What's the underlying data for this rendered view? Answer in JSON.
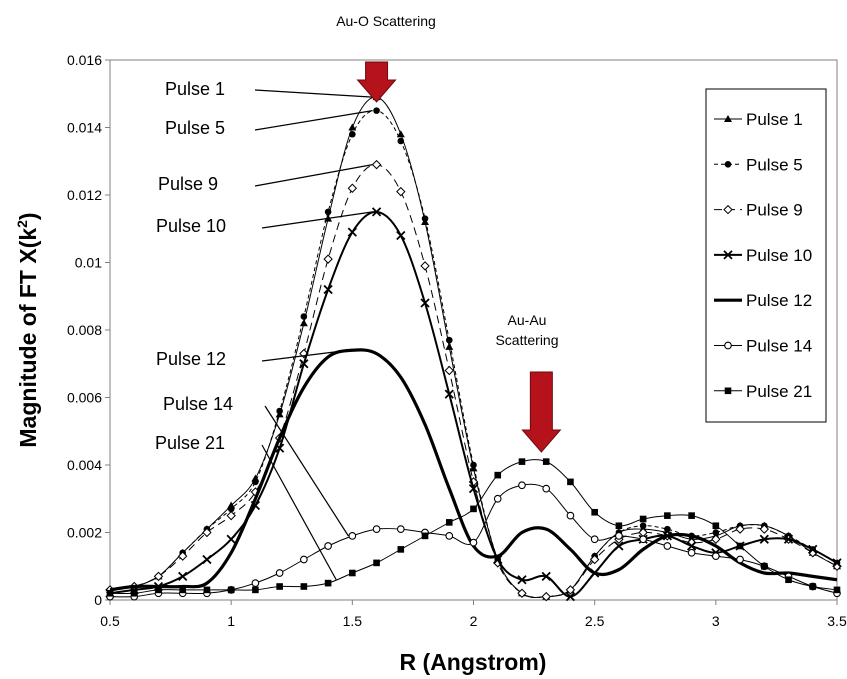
{
  "chart_data": {
    "type": "line",
    "title": "",
    "xlabel": "R (Angstrom)",
    "ylabel": "Magnitude of FT X(k",
    "ylabel_superscript": "2",
    "ylabel_suffix": ")",
    "xlim": [
      0.5,
      3.5
    ],
    "ylim": [
      0,
      0.016
    ],
    "xticks": [
      0.5,
      1,
      1.5,
      2,
      2.5,
      3,
      3.5
    ],
    "xtick_labels": [
      "0.5",
      "1",
      "1.5",
      "2",
      "2.5",
      "3",
      "3.5"
    ],
    "yticks": [
      0,
      0.002,
      0.004,
      0.006,
      0.008,
      0.01,
      0.012,
      0.014,
      0.016
    ],
    "ytick_labels": [
      "0",
      "0.002",
      "0.004",
      "0.006",
      "0.008",
      "0.01",
      "0.012",
      "0.014",
      "0.016"
    ],
    "grid": false,
    "legend_position": "right",
    "annotations": [
      {
        "text_lines": [
          "Au-O Scattering"
        ],
        "x": 1.6,
        "y": 0.0149
      },
      {
        "text_lines": [
          "Au-Au",
          "Scattering"
        ],
        "x": 2.28,
        "y": 0.0042
      }
    ],
    "arrow_color": "#b5121b",
    "series": [
      {
        "name": "Pulse 1",
        "marker": "triangle",
        "dash": "solid",
        "width": 1,
        "x": [
          0.5,
          0.6,
          0.7,
          0.8,
          0.9,
          1.0,
          1.1,
          1.2,
          1.3,
          1.4,
          1.5,
          1.6,
          1.7,
          1.8,
          1.9,
          2.0,
          2.1,
          2.2,
          2.3,
          2.4,
          2.5,
          2.6,
          2.7,
          2.8,
          2.9,
          3.0,
          3.1,
          3.2,
          3.3,
          3.4,
          3.5
        ],
        "y": [
          0.0003,
          0.0004,
          0.0007,
          0.0014,
          0.0021,
          0.0028,
          0.0036,
          0.0055,
          0.0082,
          0.0113,
          0.014,
          0.0149,
          0.0138,
          0.0112,
          0.0075,
          0.0039,
          0.0012,
          0.0002,
          0.0001,
          0.0003,
          0.0013,
          0.002,
          0.0021,
          0.002,
          0.0018,
          0.0019,
          0.0022,
          0.0022,
          0.0019,
          0.0014,
          0.001
        ]
      },
      {
        "name": "Pulse 5",
        "marker": "circle-filled",
        "dash": "dash",
        "width": 1,
        "x": [
          0.5,
          0.6,
          0.7,
          0.8,
          0.9,
          1.0,
          1.1,
          1.2,
          1.3,
          1.4,
          1.5,
          1.6,
          1.7,
          1.8,
          1.9,
          2.0,
          2.1,
          2.2,
          2.3,
          2.4,
          2.5,
          2.6,
          2.7,
          2.8,
          2.9,
          3.0,
          3.1,
          3.2,
          3.3,
          3.4,
          3.5
        ],
        "y": [
          0.0003,
          0.0004,
          0.0007,
          0.0014,
          0.0021,
          0.0027,
          0.0035,
          0.0056,
          0.0084,
          0.0115,
          0.0138,
          0.0145,
          0.0136,
          0.0113,
          0.0077,
          0.004,
          0.0012,
          0.0002,
          0.0001,
          0.0003,
          0.0013,
          0.002,
          0.0022,
          0.0021,
          0.0019,
          0.002,
          0.0022,
          0.0022,
          0.0019,
          0.0015,
          0.0011
        ]
      },
      {
        "name": "Pulse 9",
        "marker": "diamond",
        "dash": "dashlong",
        "width": 1,
        "x": [
          0.5,
          0.6,
          0.7,
          0.8,
          0.9,
          1.0,
          1.1,
          1.2,
          1.3,
          1.4,
          1.5,
          1.6,
          1.7,
          1.8,
          1.9,
          2.0,
          2.1,
          2.2,
          2.3,
          2.4,
          2.5,
          2.6,
          2.7,
          2.8,
          2.9,
          3.0,
          3.1,
          3.2,
          3.3,
          3.4,
          3.5
        ],
        "y": [
          0.0003,
          0.0004,
          0.0007,
          0.0013,
          0.002,
          0.0025,
          0.0032,
          0.0048,
          0.0073,
          0.0101,
          0.0122,
          0.0129,
          0.0121,
          0.0099,
          0.0068,
          0.0035,
          0.0011,
          0.0002,
          0.0001,
          0.0003,
          0.0012,
          0.0018,
          0.002,
          0.0019,
          0.0017,
          0.0018,
          0.0021,
          0.0021,
          0.0018,
          0.0014,
          0.001
        ]
      },
      {
        "name": "Pulse 10",
        "marker": "x",
        "dash": "solid",
        "width": 2,
        "x": [
          0.5,
          0.6,
          0.7,
          0.8,
          0.9,
          1.0,
          1.1,
          1.2,
          1.3,
          1.4,
          1.5,
          1.6,
          1.7,
          1.8,
          1.9,
          2.0,
          2.1,
          2.2,
          2.3,
          2.4,
          2.5,
          2.6,
          2.7,
          2.8,
          2.9,
          3.0,
          3.1,
          3.2,
          3.3,
          3.4,
          3.5
        ],
        "y": [
          0.0002,
          0.0003,
          0.0004,
          0.0007,
          0.0012,
          0.0018,
          0.0028,
          0.0045,
          0.007,
          0.0092,
          0.0109,
          0.0115,
          0.0108,
          0.0088,
          0.0061,
          0.0033,
          0.0012,
          0.0006,
          0.0007,
          0.0001,
          0.0008,
          0.0016,
          0.0018,
          0.0019,
          0.0016,
          0.0014,
          0.0016,
          0.0018,
          0.0018,
          0.0015,
          0.0011
        ]
      },
      {
        "name": "Pulse 12",
        "marker": "none",
        "dash": "solid",
        "width": 3.2,
        "x": [
          0.5,
          0.6,
          0.7,
          0.8,
          0.9,
          1.0,
          1.1,
          1.2,
          1.3,
          1.4,
          1.5,
          1.6,
          1.7,
          1.8,
          1.9,
          2.0,
          2.1,
          2.2,
          2.3,
          2.4,
          2.5,
          2.6,
          2.7,
          2.8,
          2.9,
          3.0,
          3.1,
          3.2,
          3.3,
          3.4,
          3.5
        ],
        "y": [
          0.0003,
          0.0004,
          0.0004,
          0.0004,
          0.0005,
          0.0014,
          0.003,
          0.0048,
          0.0063,
          0.0072,
          0.0074,
          0.0073,
          0.0066,
          0.0052,
          0.0033,
          0.0016,
          0.0013,
          0.002,
          0.0021,
          0.0015,
          0.0008,
          0.0009,
          0.0015,
          0.0019,
          0.0019,
          0.0016,
          0.0011,
          0.0008,
          0.0008,
          0.0007,
          0.0006
        ]
      },
      {
        "name": "Pulse 14",
        "marker": "circle-open",
        "dash": "solid",
        "width": 1,
        "x": [
          0.5,
          0.6,
          0.7,
          0.8,
          0.9,
          1.0,
          1.1,
          1.2,
          1.3,
          1.4,
          1.5,
          1.6,
          1.7,
          1.8,
          1.9,
          2.0,
          2.1,
          2.2,
          2.3,
          2.4,
          2.5,
          2.6,
          2.7,
          2.8,
          2.9,
          3.0,
          3.1,
          3.2,
          3.3,
          3.4,
          3.5
        ],
        "y": [
          0.0001,
          0.0001,
          0.0002,
          0.0002,
          0.0002,
          0.0003,
          0.0005,
          0.0008,
          0.0012,
          0.0016,
          0.0019,
          0.0021,
          0.0021,
          0.002,
          0.0019,
          0.0017,
          0.003,
          0.0034,
          0.0033,
          0.0025,
          0.0018,
          0.0019,
          0.0018,
          0.0016,
          0.0014,
          0.0013,
          0.0012,
          0.001,
          0.0007,
          0.0004,
          0.0002
        ]
      },
      {
        "name": "Pulse 21",
        "marker": "square",
        "dash": "solid",
        "width": 1,
        "x": [
          0.5,
          0.6,
          0.7,
          0.8,
          0.9,
          1.0,
          1.1,
          1.2,
          1.3,
          1.4,
          1.5,
          1.6,
          1.7,
          1.8,
          1.9,
          2.0,
          2.1,
          2.2,
          2.3,
          2.4,
          2.5,
          2.6,
          2.7,
          2.8,
          2.9,
          3.0,
          3.1,
          3.2,
          3.3,
          3.4,
          3.5
        ],
        "y": [
          0.0002,
          0.0002,
          0.0003,
          0.0003,
          0.0003,
          0.0003,
          0.0003,
          0.0004,
          0.0004,
          0.0005,
          0.0008,
          0.0011,
          0.0015,
          0.0019,
          0.0023,
          0.0027,
          0.0037,
          0.0041,
          0.0041,
          0.0035,
          0.0026,
          0.0022,
          0.0024,
          0.0025,
          0.0025,
          0.0022,
          0.0016,
          0.001,
          0.0006,
          0.0004,
          0.0003
        ]
      }
    ],
    "leader_labels": [
      {
        "name": "Pulse 1",
        "point": [
          1.6,
          0.0149
        ]
      },
      {
        "name": "Pulse 5",
        "point": [
          1.6,
          0.0145
        ]
      },
      {
        "name": "Pulse 9",
        "point": [
          1.6,
          0.0129
        ]
      },
      {
        "name": "Pulse 10",
        "point": [
          1.6,
          0.0115
        ]
      },
      {
        "name": "Pulse 12",
        "point": [
          1.5,
          0.0074
        ]
      },
      {
        "name": "Pulse 14",
        "point": [
          1.5,
          0.0019
        ]
      },
      {
        "name": "Pulse 21",
        "point": [
          1.45,
          0.0006
        ]
      }
    ]
  }
}
